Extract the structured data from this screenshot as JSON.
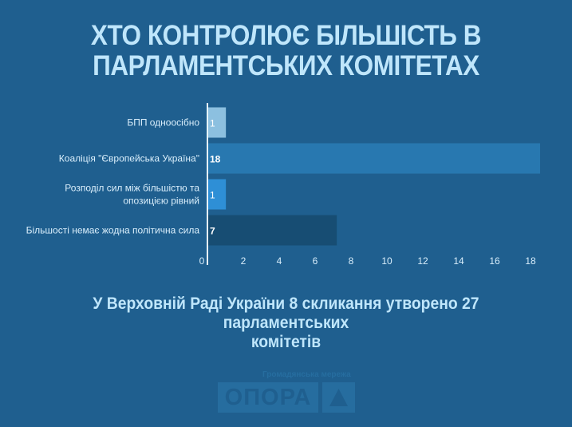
{
  "header": {
    "title_line1": "ХТО КОНТРОЛЮЄ БІЛЬШІСТЬ В",
    "title_line2": "ПАРЛАМЕНТСЬКИХ КОМІТЕТАХ"
  },
  "chart_data": {
    "type": "bar",
    "orientation": "horizontal",
    "categories": [
      "БПП одноосібно",
      "Коаліція \"Європейська Україна\"",
      "Розподіл сил між більшістю та опозицією рівний",
      "Більшості немає жодна політична сила"
    ],
    "category_lines": [
      [
        "БПП одноосібно"
      ],
      [
        "Коаліція \"Європейська Україна\""
      ],
      [
        "Розподіл сил між більшістю та",
        "опозицією рівний"
      ],
      [
        "Більшості немає жодна політична сила"
      ]
    ],
    "values": [
      1,
      18,
      1,
      7
    ],
    "bar_colors": [
      "#8cc0e0",
      "#2878b0",
      "#2e8fd6",
      "#174d73"
    ],
    "xlim": [
      0,
      18
    ],
    "xticks": [
      0,
      2,
      4,
      6,
      8,
      10,
      12,
      14,
      16,
      18
    ],
    "grid": false,
    "xlabel": "",
    "ylabel": ""
  },
  "caption": {
    "line1": "У Верховній Раді України 8 скликання утворено 27 парламентських",
    "line2": "комітетів"
  },
  "logo": {
    "subtitle": "Громадянська мережа",
    "name": "ОПОРА",
    "icon": "triangle-up-icon"
  },
  "colors": {
    "background": "#1f5f8f",
    "text": "#bfe6fb"
  }
}
